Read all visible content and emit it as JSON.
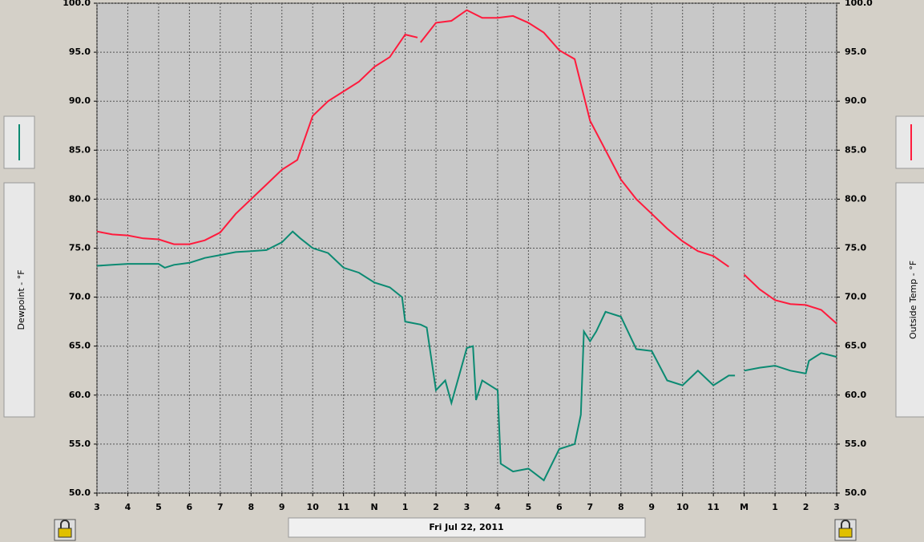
{
  "chart_data": {
    "type": "line",
    "title": "Fri Jul 22, 2011",
    "ylabel": "Dewpoint - °F",
    "y2label": "Outside Temp - °F",
    "xlim": [
      3,
      27
    ],
    "xticks": [
      3,
      4,
      5,
      6,
      7,
      8,
      9,
      10,
      11,
      {
        "value": 12,
        "label": "N"
      },
      {
        "value": 13,
        "label": "1"
      },
      {
        "value": 14,
        "label": "2"
      },
      {
        "value": 15,
        "label": "3"
      },
      {
        "value": 16,
        "label": "4"
      },
      {
        "value": 17,
        "label": "5"
      },
      {
        "value": 18,
        "label": "6"
      },
      {
        "value": 19,
        "label": "7"
      },
      {
        "value": 20,
        "label": "8"
      },
      {
        "value": 21,
        "label": "9"
      },
      {
        "value": 22,
        "label": "10"
      },
      {
        "value": 23,
        "label": "11"
      },
      {
        "value": 24,
        "label": "M"
      },
      {
        "value": 25,
        "label": "1"
      },
      {
        "value": 26,
        "label": "2"
      },
      {
        "value": 27,
        "label": "3"
      }
    ],
    "ylim": [
      50,
      100
    ],
    "yticks": [
      {
        "value": 50,
        "label": "50.0"
      },
      {
        "value": 55,
        "label": "55.0"
      },
      {
        "value": 60,
        "label": "60.0"
      },
      {
        "value": 65,
        "label": "65.0"
      },
      {
        "value": 70,
        "label": "70.0"
      },
      {
        "value": 75,
        "label": "75.0"
      },
      {
        "value": 80,
        "label": "80.0"
      },
      {
        "value": 85,
        "label": "85.0"
      },
      {
        "value": 90,
        "label": "90.0"
      },
      {
        "value": 95,
        "label": "95.0"
      },
      {
        "value": 100,
        "label": "100.0"
      }
    ],
    "y2lim": [
      50,
      100
    ],
    "y2ticks": [
      {
        "value": 50,
        "label": "50.0"
      },
      {
        "value": 55,
        "label": "55.0"
      },
      {
        "value": 60,
        "label": "60.0"
      },
      {
        "value": 65,
        "label": "65.0"
      },
      {
        "value": 70,
        "label": "70.0"
      },
      {
        "value": 75,
        "label": "75.0"
      },
      {
        "value": 80,
        "label": "80.0"
      },
      {
        "value": 85,
        "label": "85.0"
      },
      {
        "value": 90,
        "label": "90.0"
      },
      {
        "value": 95,
        "label": "95.0"
      },
      {
        "value": 100,
        "label": "100.0"
      }
    ],
    "grid": true,
    "series": [
      {
        "color": "#0b8a72",
        "x": [
          3,
          3.5,
          4,
          4.5,
          5,
          5.2,
          5.5,
          6,
          6.5,
          7,
          7.5,
          8,
          8.5,
          9,
          9.35,
          9.6,
          10,
          10.5,
          11,
          11.5,
          12,
          12.5,
          12.9,
          13,
          13.5,
          13.7,
          14,
          14.3,
          14.5,
          15,
          15.2,
          15.3,
          15.5,
          16,
          16.1,
          16.5,
          17,
          17.5,
          18,
          18.5,
          18.7,
          18.8,
          19,
          19.2,
          19.5,
          20,
          20.5,
          21,
          21.5,
          22,
          22.5,
          23,
          23.5,
          23.7,
          23.9,
          24,
          24.5,
          25,
          25.5,
          26,
          26.1,
          26.5,
          27
        ],
        "values": [
          73.2,
          73.3,
          73.4,
          73.4,
          73.4,
          73.0,
          73.3,
          73.5,
          74.0,
          74.3,
          74.6,
          74.7,
          74.8,
          75.6,
          76.7,
          76.0,
          75.0,
          74.5,
          73.0,
          72.5,
          71.5,
          71.0,
          70.0,
          67.5,
          67.2,
          66.9,
          60.5,
          61.5,
          59.2,
          64.8,
          65.0,
          59.5,
          61.5,
          60.5,
          53.0,
          52.2,
          52.5,
          51.3,
          54.5,
          55.0,
          58.0,
          66.5,
          65.5,
          66.5,
          68.5,
          68.0,
          64.7,
          64.5,
          61.5,
          61.0,
          62.5,
          61.0,
          62.0,
          62.0,
          null,
          62.5,
          62.8,
          63.0,
          62.5,
          62.2,
          63.5,
          64.3,
          63.9
        ]
      },
      {
        "color": "#ff1a3c",
        "axis": "y2",
        "x": [
          3,
          3.5,
          4,
          4.5,
          5,
          5.5,
          6,
          6.5,
          7,
          7.5,
          8,
          8.5,
          9,
          9.5,
          10,
          10.5,
          11,
          11.5,
          12,
          12.5,
          13,
          13.4,
          13.45,
          13.5,
          14,
          14.5,
          15,
          15.5,
          16,
          16.5,
          17,
          17.5,
          18,
          18.5,
          19,
          19.5,
          20,
          20.5,
          21,
          21.5,
          22,
          22.5,
          23,
          23.5,
          23.7,
          24,
          24.5,
          25,
          25.5,
          26,
          26.5,
          27
        ],
        "values": [
          76.7,
          76.4,
          76.3,
          76.0,
          75.9,
          75.4,
          75.4,
          75.8,
          76.6,
          78.5,
          80.0,
          81.5,
          83.0,
          84.0,
          88.5,
          90.0,
          91.0,
          92.0,
          93.5,
          94.5,
          96.8,
          96.5,
          null,
          96.0,
          98.0,
          98.2,
          99.3,
          98.5,
          98.5,
          98.7,
          98.0,
          97.0,
          95.2,
          94.3,
          88.0,
          85.0,
          82.0,
          80.0,
          78.5,
          77.0,
          75.7,
          74.7,
          74.2,
          73.1,
          null,
          72.3,
          70.8,
          69.7,
          69.3,
          69.2,
          68.7,
          67.3
        ]
      }
    ]
  }
}
